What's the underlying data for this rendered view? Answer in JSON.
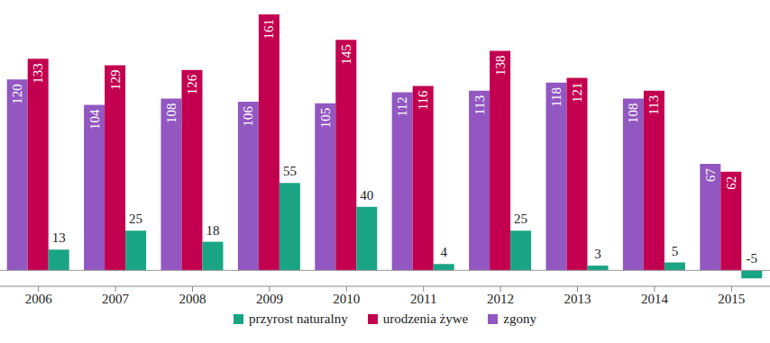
{
  "chart_data": {
    "type": "bar",
    "categories": [
      "2006",
      "2007",
      "2008",
      "2009",
      "2010",
      "2011",
      "2012",
      "2013",
      "2014",
      "2015"
    ],
    "series": [
      {
        "name": "zgony",
        "color": "#9257c0",
        "values": [
          120,
          104,
          108,
          106,
          105,
          112,
          113,
          118,
          108,
          67
        ]
      },
      {
        "name": "urodzenia żywe",
        "color": "#c2004f",
        "values": [
          133,
          129,
          126,
          161,
          145,
          116,
          138,
          121,
          113,
          62
        ]
      },
      {
        "name": "przyrost naturalny",
        "color": "#19a583",
        "values": [
          13,
          25,
          18,
          55,
          40,
          4,
          25,
          3,
          5,
          -5
        ]
      }
    ],
    "ylim": [
      -10,
      170
    ],
    "yticks": [
      0
    ],
    "data_labels": true,
    "tick_labels": "x",
    "legend": "bottom"
  }
}
